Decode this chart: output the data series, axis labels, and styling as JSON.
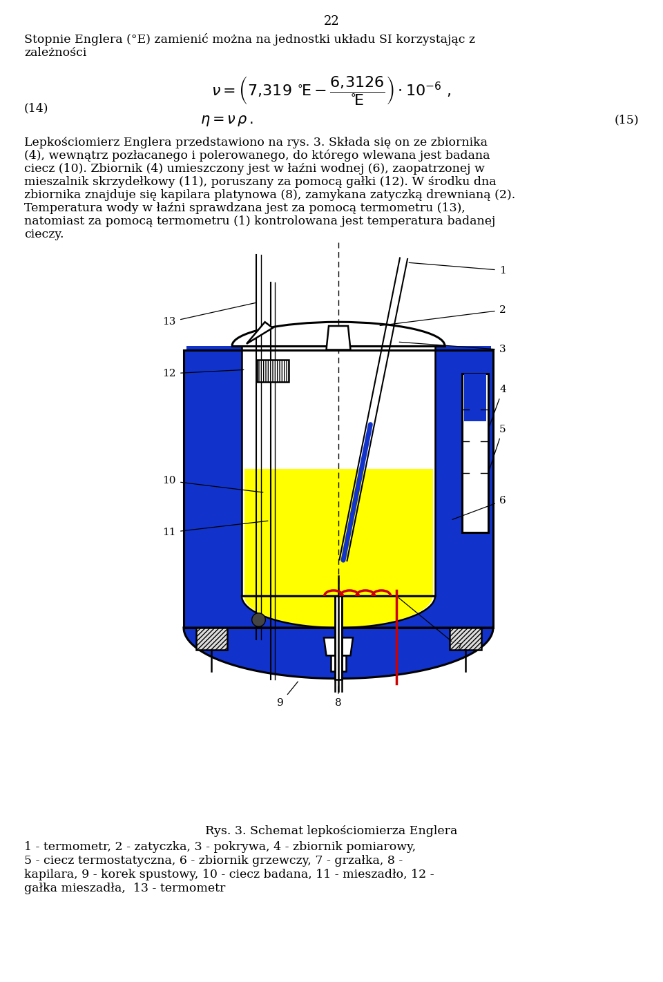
{
  "page_number": "22",
  "bg_color": "#ffffff",
  "text_color": "#000000",
  "blue_dark": "#0000bb",
  "blue_fill": "#1133cc",
  "yellow": "#ffff00",
  "red": "#cc0000",
  "black": "#000000",
  "white": "#ffffff",
  "gray": "#aaaaaa",
  "font_size_body": 12.5,
  "font_size_title": 13,
  "font_size_formula": 15,
  "font_size_caption": 12,
  "font_size_label": 11
}
